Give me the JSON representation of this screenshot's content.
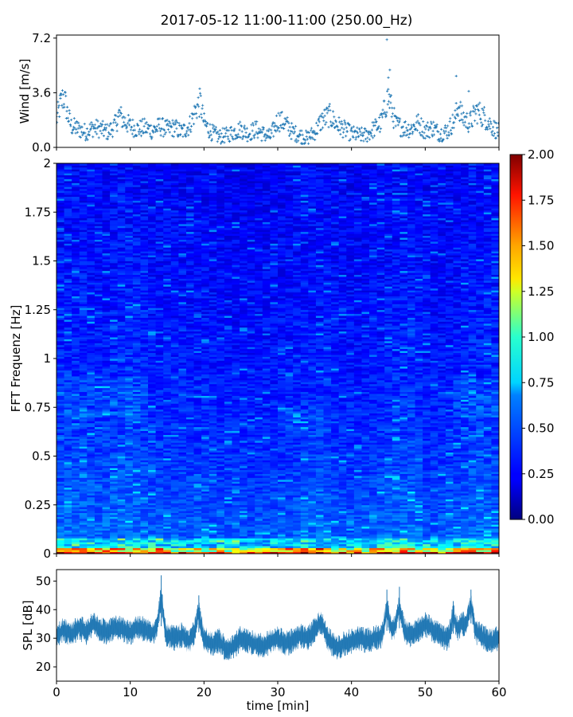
{
  "chart_data": [
    {
      "type": "scatter",
      "panel": "wind",
      "title": "2017-05-12 11:00-11:00 (250.00_Hz)",
      "ylabel": "Wind [m/s]",
      "xlim": [
        0,
        60
      ],
      "ylim": [
        0,
        7.4
      ],
      "yticks": [
        0.0,
        3.6,
        7.2
      ],
      "ytick_labels": [
        "0.0",
        "3.6",
        "7.2"
      ],
      "marker": "+",
      "color": "#1f77b4",
      "grid": false,
      "envelope": {
        "x": [
          0,
          0.5,
          1,
          1.5,
          2,
          3,
          4,
          5,
          6,
          7,
          8,
          8.5,
          9,
          10,
          11,
          12,
          13,
          14,
          15,
          16,
          17,
          18,
          19,
          19.5,
          20,
          21,
          22,
          23,
          24,
          25,
          26,
          27,
          28,
          29,
          30,
          31,
          32,
          33,
          34,
          35,
          36,
          37,
          38,
          39,
          40,
          41,
          42,
          43,
          44,
          44.5,
          45,
          45.5,
          46,
          47,
          48,
          49,
          50,
          51,
          52,
          53,
          54,
          54.5,
          55,
          56,
          57,
          58,
          59,
          60
        ],
        "y": [
          1.8,
          2.8,
          3.4,
          2.2,
          1.4,
          1.2,
          1.0,
          1.3,
          1.2,
          1.0,
          1.5,
          2.2,
          1.8,
          1.4,
          1.2,
          1.3,
          1.1,
          1.4,
          1.2,
          1.3,
          1.0,
          1.4,
          2.6,
          3.0,
          1.6,
          1.0,
          0.7,
          0.8,
          1.0,
          1.2,
          0.9,
          1.2,
          0.9,
          0.7,
          1.8,
          1.6,
          1.0,
          0.8,
          0.6,
          1.0,
          1.8,
          2.1,
          1.5,
          1.2,
          0.9,
          0.8,
          0.8,
          1.2,
          1.6,
          2.5,
          3.4,
          2.4,
          1.5,
          1.3,
          1.2,
          1.6,
          1.1,
          1.3,
          0.9,
          1.1,
          1.8,
          2.8,
          2.0,
          1.6,
          2.4,
          2.0,
          1.4,
          1.0
        ]
      },
      "highlights": [
        {
          "x": 44.8,
          "y": 7.1
        },
        {
          "x": 45.2,
          "y": 5.1
        },
        {
          "x": 45.0,
          "y": 4.6
        },
        {
          "x": 54.2,
          "y": 4.7
        },
        {
          "x": 55.9,
          "y": 3.7
        }
      ]
    },
    {
      "type": "heatmap",
      "panel": "spectrogram",
      "ylabel": "FFT Frequenz [Hz]",
      "xlim": [
        0,
        60
      ],
      "ylim": [
        0,
        2
      ],
      "yticks": [
        0,
        0.25,
        0.5,
        0.75,
        1,
        1.25,
        1.5,
        1.75,
        2
      ],
      "ytick_labels": [
        "0",
        "0.25",
        "0.5",
        "0.75",
        "1",
        "1.25",
        "1.5",
        "1.75",
        "2"
      ],
      "colormap": "jet",
      "clim": [
        0,
        2
      ],
      "colorbar_ticks": [
        "0.00",
        "0.25",
        "0.50",
        "0.75",
        "1.00",
        "1.25",
        "1.50",
        "1.75",
        "2.00"
      ],
      "colorbar_values": [
        0,
        0.25,
        0.5,
        0.75,
        1,
        1.25,
        1.5,
        1.75,
        2
      ],
      "time_profile": {
        "x": [
          0,
          3,
          6,
          8,
          10,
          12,
          14,
          16,
          18,
          20,
          24,
          28,
          30,
          33,
          35,
          37,
          40,
          42,
          44,
          46,
          48,
          50,
          52,
          54,
          56,
          58,
          60
        ],
        "intensity": [
          0.45,
          0.5,
          0.42,
          0.48,
          0.55,
          0.45,
          0.4,
          0.38,
          0.36,
          0.38,
          0.32,
          0.3,
          0.33,
          0.42,
          0.46,
          0.4,
          0.32,
          0.36,
          0.4,
          0.48,
          0.5,
          0.36,
          0.34,
          0.38,
          0.46,
          0.48,
          0.44
        ]
      }
    },
    {
      "type": "line",
      "panel": "spl",
      "ylabel": "SPL [dB]",
      "xlabel": "time [min]",
      "xlim": [
        0,
        60
      ],
      "ylim": [
        15,
        54
      ],
      "yticks": [
        20,
        30,
        40,
        50
      ],
      "ytick_labels": [
        "20",
        "30",
        "40",
        "50"
      ],
      "xticks": [
        0,
        10,
        20,
        30,
        40,
        50,
        60
      ],
      "xtick_labels": [
        "0",
        "10",
        "20",
        "30",
        "40",
        "50",
        "60"
      ],
      "color": "#1f77b4",
      "mean": {
        "x": [
          0,
          1,
          2,
          3,
          4,
          5,
          6,
          7,
          8,
          9,
          10,
          11,
          12,
          13,
          14,
          15,
          16,
          17,
          18,
          19,
          20,
          21,
          22,
          23,
          24,
          25,
          26,
          27,
          28,
          29,
          30,
          31,
          32,
          33,
          34,
          35,
          36,
          37,
          38,
          39,
          40,
          41,
          42,
          43,
          44,
          45,
          46,
          47,
          48,
          49,
          50,
          51,
          52,
          53,
          54,
          55,
          56,
          57,
          58,
          59,
          60
        ],
        "y": [
          31,
          33,
          31,
          34,
          32,
          35,
          33,
          32,
          34,
          33,
          32,
          34,
          33,
          32,
          35,
          31,
          30,
          31,
          29,
          33,
          30,
          28,
          29,
          26,
          27,
          30,
          29,
          28,
          27,
          29,
          30,
          28,
          29,
          31,
          30,
          33,
          34,
          29,
          27,
          28,
          29,
          30,
          29,
          30,
          31,
          33,
          34,
          33,
          31,
          33,
          35,
          33,
          31,
          30,
          32,
          35,
          36,
          32,
          30,
          29,
          30
        ]
      },
      "band": 3.5,
      "spikes": [
        {
          "x": 14.2,
          "y": 52
        },
        {
          "x": 19.3,
          "y": 45
        },
        {
          "x": 35.8,
          "y": 38
        },
        {
          "x": 44.8,
          "y": 47
        },
        {
          "x": 46.5,
          "y": 48
        },
        {
          "x": 53.8,
          "y": 43
        },
        {
          "x": 56.2,
          "y": 47
        }
      ]
    }
  ]
}
